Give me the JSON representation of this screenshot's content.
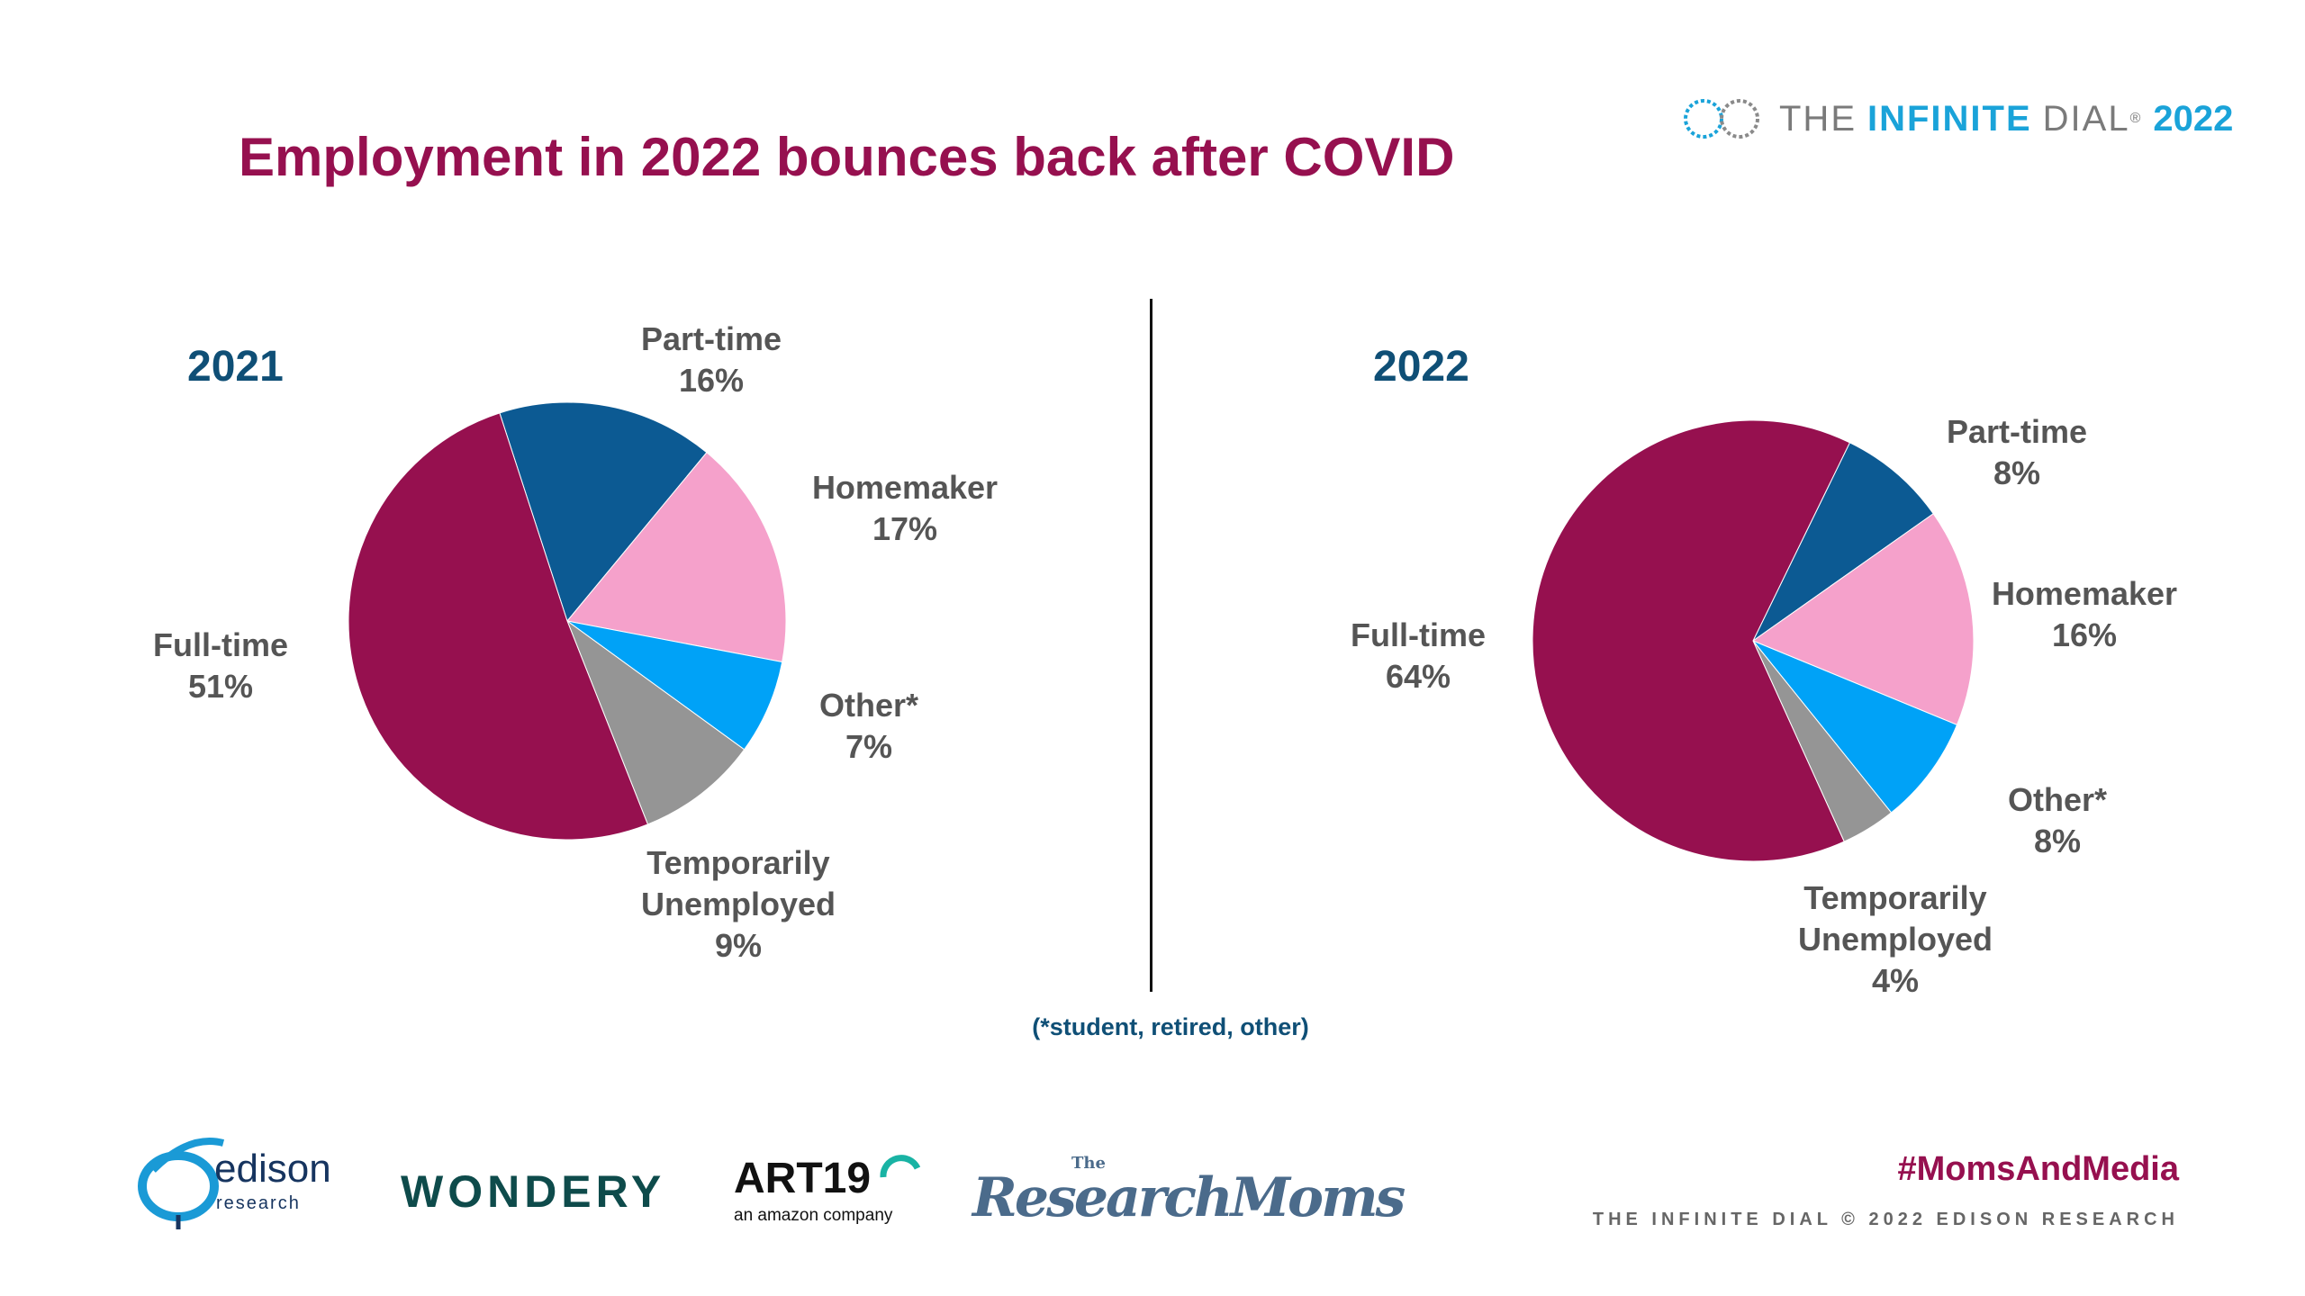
{
  "title": "Employment in 2022 bounces back after COVID",
  "brand": {
    "the": "THE",
    "infinite": "INFINITE",
    "dial": "DIAL",
    "reg": "®",
    "year": "2022"
  },
  "chart_data": [
    {
      "type": "pie",
      "title": "2021",
      "slices": [
        {
          "label": "Part-time",
          "value": 16,
          "display": "16%",
          "color": "#0c5a93"
        },
        {
          "label": "Homemaker",
          "value": 17,
          "display": "17%",
          "color": "#f5a1cb"
        },
        {
          "label": "Other*",
          "value": 7,
          "display": "7%",
          "color": "#00a2f7"
        },
        {
          "label_lines": [
            "Temporarily",
            "Unemployed"
          ],
          "value": 9,
          "display": "9%",
          "color": "#959595"
        },
        {
          "label": "Full-time",
          "value": 51,
          "display": "51%",
          "color": "#96104f"
        }
      ]
    },
    {
      "type": "pie",
      "title": "2022",
      "slices": [
        {
          "label": "Part-time",
          "value": 8,
          "display": "8%",
          "color": "#0c5a93"
        },
        {
          "label": "Homemaker",
          "value": 16,
          "display": "16%",
          "color": "#f5a1cb"
        },
        {
          "label": "Other*",
          "value": 8,
          "display": "8%",
          "color": "#00a2f7"
        },
        {
          "label_lines": [
            "Temporarily",
            "Unemployed"
          ],
          "value": 4,
          "display": "4%",
          "color": "#959595"
        },
        {
          "label": "Full-time",
          "value": 64,
          "display": "64%",
          "color": "#96104f"
        }
      ]
    }
  ],
  "footnote": "(*student, retired, other)",
  "hashtag": "#MomsAndMedia",
  "copyright": "THE INFINITE DIAL   © 2022 EDISON RESEARCH",
  "logos": {
    "edison": {
      "word": "edison",
      "sub": "research"
    },
    "wondery": "WONDERY",
    "art19": {
      "word": "ART19",
      "sub": "an amazon company"
    },
    "researchmoms": {
      "the": "The",
      "word": "ResearchMoms"
    }
  }
}
